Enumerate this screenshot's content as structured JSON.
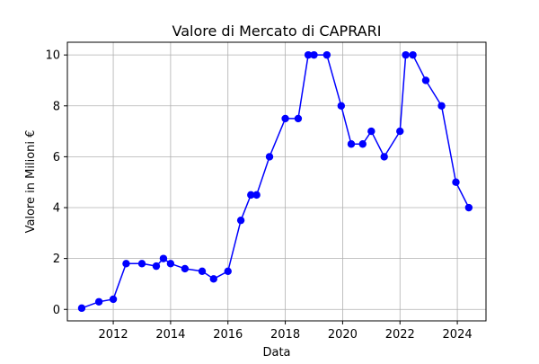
{
  "chart_data": {
    "type": "line",
    "title": "Valore di Mercato di CAPRARI",
    "xlabel": "Data",
    "ylabel": "Valore in Milioni €",
    "x_ticks": [
      "2012",
      "2014",
      "2016",
      "2018",
      "2020",
      "2022",
      "2024"
    ],
    "y_ticks": [
      "0",
      "2",
      "4",
      "6",
      "8",
      "10"
    ],
    "xlim": [
      2010.4,
      2025.0
    ],
    "ylim": [
      -0.45,
      10.5
    ],
    "grid": true,
    "series": [
      {
        "color": "#0000ff",
        "marker": "circle",
        "points": [
          {
            "x": 2010.9,
            "y": 0.05
          },
          {
            "x": 2011.5,
            "y": 0.3
          },
          {
            "x": 2012.0,
            "y": 0.4
          },
          {
            "x": 2012.45,
            "y": 1.8
          },
          {
            "x": 2013.0,
            "y": 1.8
          },
          {
            "x": 2013.5,
            "y": 1.7
          },
          {
            "x": 2013.75,
            "y": 2.0
          },
          {
            "x": 2014.0,
            "y": 1.8
          },
          {
            "x": 2014.5,
            "y": 1.6
          },
          {
            "x": 2015.1,
            "y": 1.5
          },
          {
            "x": 2015.5,
            "y": 1.2
          },
          {
            "x": 2016.0,
            "y": 1.5
          },
          {
            "x": 2016.45,
            "y": 3.5
          },
          {
            "x": 2016.8,
            "y": 4.5
          },
          {
            "x": 2017.0,
            "y": 4.5
          },
          {
            "x": 2017.45,
            "y": 6.0
          },
          {
            "x": 2018.0,
            "y": 7.5
          },
          {
            "x": 2018.45,
            "y": 7.5
          },
          {
            "x": 2018.8,
            "y": 10.0
          },
          {
            "x": 2019.0,
            "y": 10.0
          },
          {
            "x": 2019.45,
            "y": 10.0
          },
          {
            "x": 2019.95,
            "y": 8.0
          },
          {
            "x": 2020.3,
            "y": 6.5
          },
          {
            "x": 2020.7,
            "y": 6.5
          },
          {
            "x": 2021.0,
            "y": 7.0
          },
          {
            "x": 2021.45,
            "y": 6.0
          },
          {
            "x": 2022.0,
            "y": 7.0
          },
          {
            "x": 2022.2,
            "y": 10.0
          },
          {
            "x": 2022.45,
            "y": 10.0
          },
          {
            "x": 2022.9,
            "y": 9.0
          },
          {
            "x": 2023.45,
            "y": 8.0
          },
          {
            "x": 2023.95,
            "y": 5.0
          },
          {
            "x": 2024.4,
            "y": 4.0
          }
        ]
      }
    ]
  }
}
